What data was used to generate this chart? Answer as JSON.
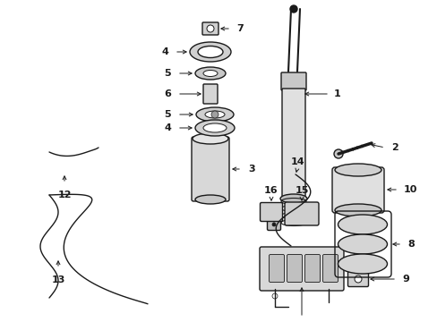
{
  "bg_color": "#ffffff",
  "line_color": "#1a1a1a",
  "gray_fill": "#d0d0d0",
  "light_fill": "#e8e8e8"
}
